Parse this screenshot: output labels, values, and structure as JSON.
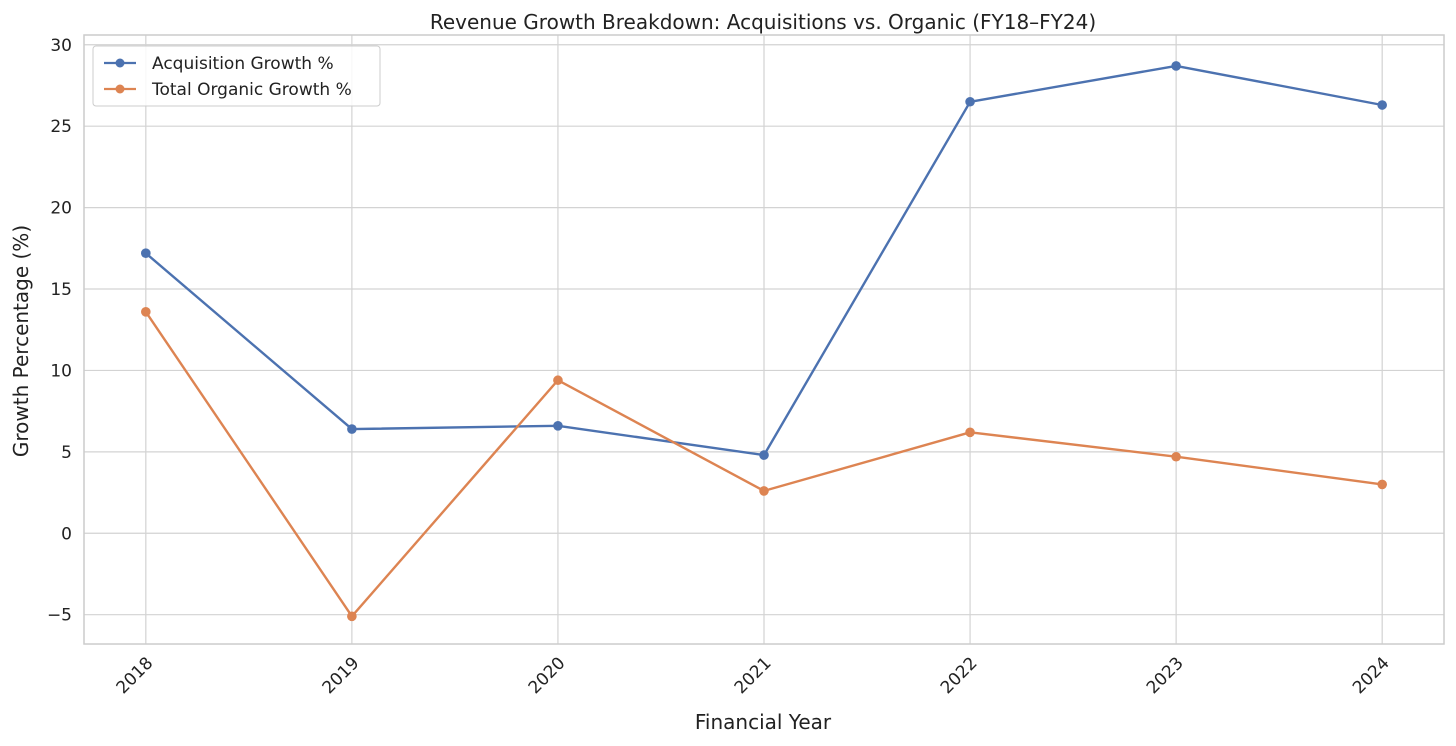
{
  "chart_data": {
    "type": "line",
    "title": "Revenue Growth Breakdown: Acquisitions vs. Organic (FY18–FY24)",
    "xlabel": "Financial Year",
    "ylabel": "Growth Percentage (%)",
    "x": [
      2018,
      2019,
      2020,
      2021,
      2022,
      2023,
      2024
    ],
    "x_tick_labels": [
      "2018",
      "2019",
      "2020",
      "2021",
      "2022",
      "2023",
      "2024"
    ],
    "x_tick_rotation_deg": 45,
    "xlim": [
      2017.7,
      2024.3
    ],
    "ylim": [
      -6.8,
      30.6
    ],
    "y_ticks": [
      -5,
      0,
      5,
      10,
      15,
      20,
      25,
      30
    ],
    "y_tick_labels": [
      "−5",
      "0",
      "5",
      "10",
      "15",
      "20",
      "25",
      "30"
    ],
    "grid": true,
    "legend_position": "top-left",
    "series": [
      {
        "name": "Acquisition Growth %",
        "color": "#4c72b0",
        "marker": "circle",
        "values": [
          17.2,
          6.4,
          6.6,
          4.8,
          26.5,
          28.7,
          26.3
        ]
      },
      {
        "name": "Total Organic Growth %",
        "color": "#dd8452",
        "marker": "circle",
        "values": [
          13.6,
          -5.1,
          9.4,
          2.6,
          6.2,
          4.7,
          3.0
        ]
      }
    ]
  }
}
